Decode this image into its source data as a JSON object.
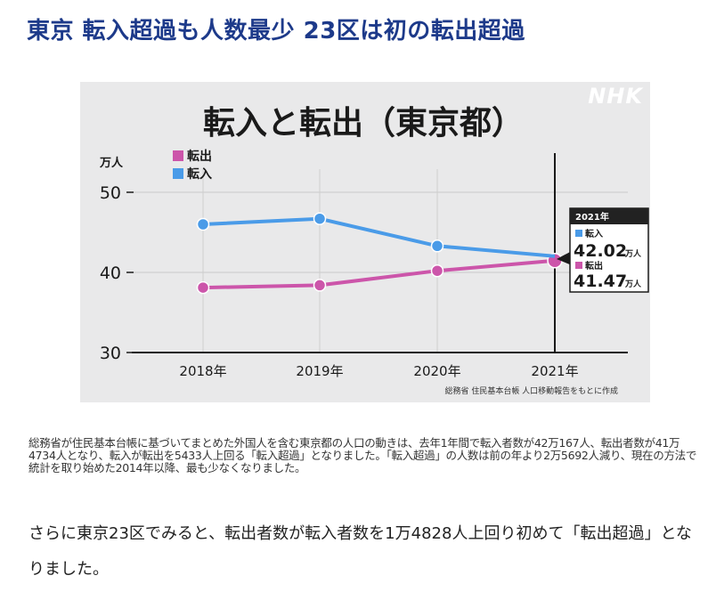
{
  "article": {
    "headline": "東京 転入超過も人数最少 23区は初の転出超過",
    "caption": "総務省が住民基本台帳に基づいてまとめた外国人を含む東京都の人口の動きは、去年1年間で転入者数が42万167人、転出者数が41万4734人となり、転入が転出を5433人上回る「転入超過」となりました。「転入超過」の人数は前の年より2万5692人減り、現在の方法で統計を取り始めた2014年以降、最も少なくなりました。",
    "body": "さらに東京23区でみると、転出者数が転入者数を1万4828人上回り初めて「転出超過」となりました。"
  },
  "chart_data": {
    "type": "line",
    "title": "転入と転出（東京都）",
    "logo": "NHK",
    "unit_label": "万人",
    "categories": [
      "2018年",
      "2019年",
      "2020年",
      "2021年"
    ],
    "ylim": [
      30,
      50
    ],
    "yticks": [
      30,
      40,
      50
    ],
    "grid": true,
    "legend_position": "top-left",
    "series": [
      {
        "name": "転出",
        "color": "#cc55aa",
        "values": [
          38.1,
          38.4,
          40.2,
          41.47
        ]
      },
      {
        "name": "転入",
        "color": "#4a9be8",
        "values": [
          46.0,
          46.7,
          43.3,
          42.02
        ]
      }
    ],
    "callout": {
      "year": "2021年",
      "in_label": "転入",
      "in_value": "42.02",
      "in_unit": "万人",
      "out_label": "転出",
      "out_value": "41.47",
      "out_unit": "万人"
    },
    "source": "総務省 住民基本台帳 人口移動報告をもとに作成"
  }
}
